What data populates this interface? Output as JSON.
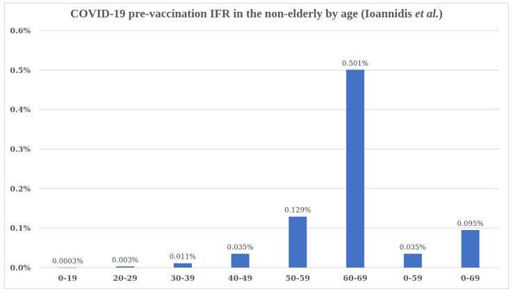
{
  "chart_data": {
    "type": "bar",
    "title_main": "COVID-19 pre-vaccination IFR in the non-elderly by age (Ioannidis ",
    "title_italic": "et al.",
    "title_end": ")",
    "categories": [
      "0-19",
      "20-29",
      "30-39",
      "40-49",
      "50-59",
      "60-69",
      "0-59",
      "0-69"
    ],
    "values": [
      0.0003,
      0.003,
      0.011,
      0.035,
      0.129,
      0.501,
      0.035,
      0.095
    ],
    "data_labels": [
      "0.0003%",
      "0.003%",
      "0.011%",
      "0.035%",
      "0.129%",
      "0.501%",
      "0.035%",
      "0.095%"
    ],
    "yticks": [
      0,
      0.1,
      0.2,
      0.3,
      0.4,
      0.5,
      0.6
    ],
    "ytick_labels": [
      "0.0%",
      "0.1%",
      "0.2%",
      "0.3%",
      "0.4%",
      "0.5%",
      "0.6%"
    ],
    "ylim": [
      0,
      0.6
    ],
    "xlabel": "",
    "ylabel": "",
    "grid": true,
    "bar_color": "#4472c4",
    "grid_color": "#d9d9d9"
  }
}
